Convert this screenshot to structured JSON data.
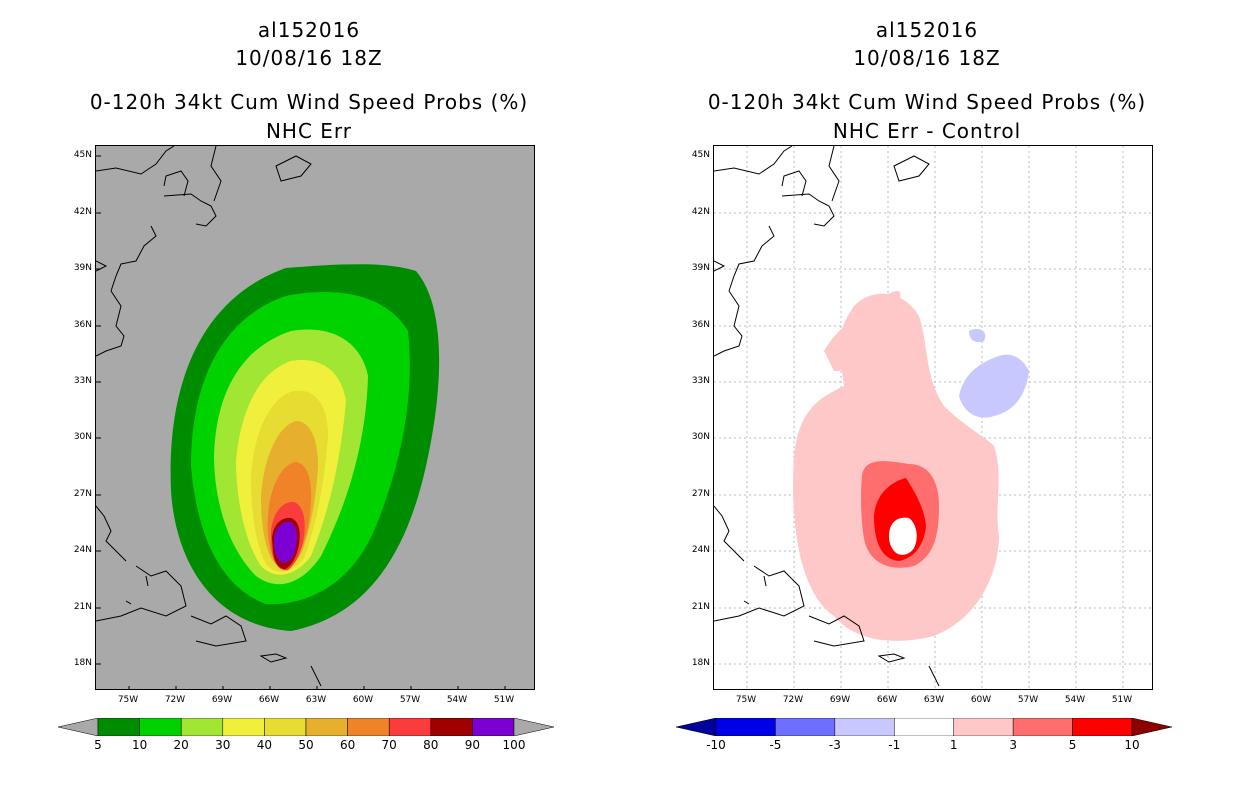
{
  "left": {
    "storm_id": "al152016",
    "datetime": "10/08/16 18Z",
    "product": "0-120h 34kt Cum Wind Speed Probs (%)",
    "subtitle": "NHC Err",
    "background_color": "#a9a9a9",
    "colorbar": {
      "labels": [
        "5",
        "10",
        "20",
        "30",
        "40",
        "50",
        "60",
        "70",
        "80",
        "90",
        "100"
      ],
      "colors": [
        "#008c00",
        "#00d200",
        "#a0e632",
        "#f0f03c",
        "#e6dc32",
        "#e6af2d",
        "#f08228",
        "#fa3c3c",
        "#a00000",
        "#7d00d2"
      ],
      "under_color": "#a9a9a9",
      "over_color": "#a9a9a9"
    }
  },
  "right": {
    "storm_id": "al152016",
    "datetime": "10/08/16 18Z",
    "product": "0-120h 34kt Cum Wind Speed Probs (%)",
    "subtitle": "NHC Err - Control",
    "background_color": "#ffffff",
    "colorbar": {
      "labels": [
        "-10",
        "-5",
        "-3",
        "-1",
        "1",
        "3",
        "5",
        "10"
      ],
      "colors": [
        "#0000e6",
        "#6e6eff",
        "#c8c8ff",
        "#ffffff",
        "#ffc8c8",
        "#ff6e6e",
        "#ff0000"
      ],
      "under_color": "#00009b",
      "over_color": "#8c0000"
    }
  },
  "lat_labels": [
    "45N",
    "42N",
    "39N",
    "36N",
    "33N",
    "30N",
    "27N",
    "24N",
    "21N",
    "18N"
  ],
  "lon_labels": [
    "75W",
    "72W",
    "69W",
    "66W",
    "63W",
    "60W",
    "57W",
    "54W",
    "51W"
  ]
}
